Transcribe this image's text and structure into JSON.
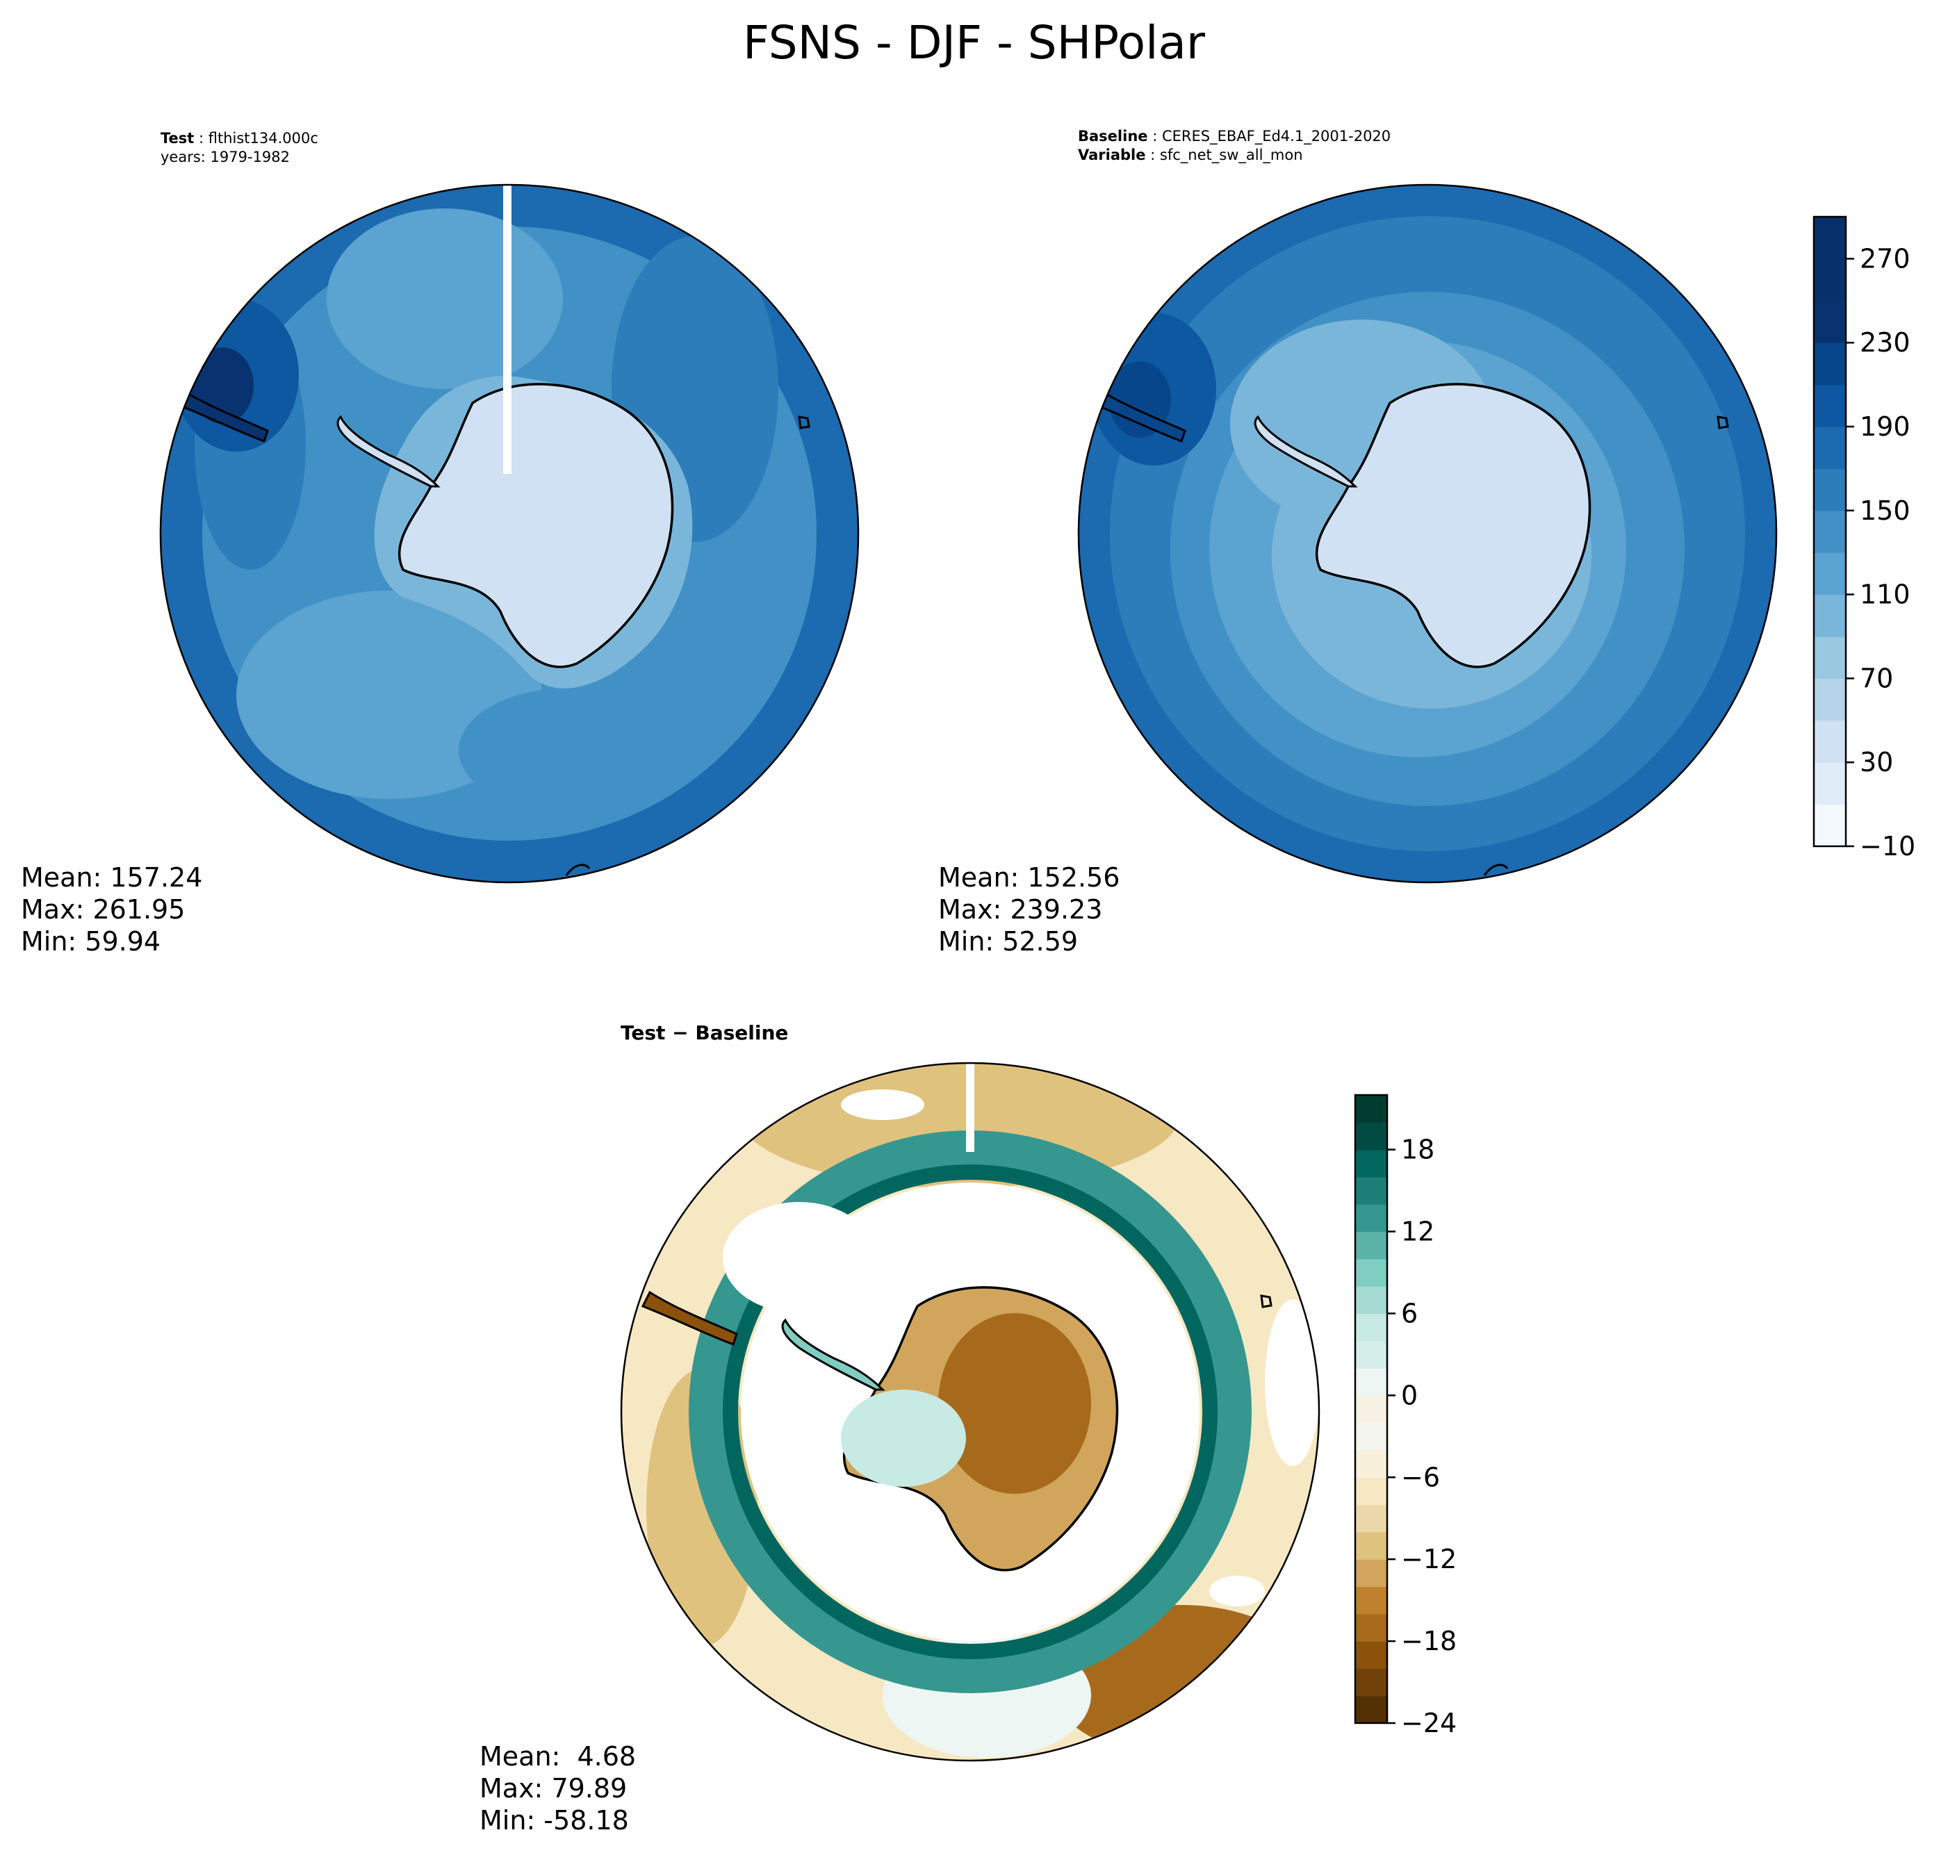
{
  "figure": {
    "title": "FSNS - DJF - SHPolar"
  },
  "colors": {
    "blues": [
      "#f4f9fe",
      "#e0edf8",
      "#cfe1f2",
      "#b6d4e9",
      "#9ac8e0",
      "#7ab6d9",
      "#5ba3d0",
      "#4191c6",
      "#2d7dbb",
      "#1c6aaf",
      "#0d58a1",
      "#08468b",
      "#083370"
    ],
    "brbg_neg": [
      "#543005",
      "#704109",
      "#8c510a",
      "#a76a1c",
      "#bf812d",
      "#d1a55b",
      "#dfc27d",
      "#ebd7a9",
      "#f6e8c3",
      "#f9f0dc"
    ],
    "brbg_pos": [
      "#eef6f3",
      "#d6eee9",
      "#c7eae5",
      "#a5dbd2",
      "#80cdc1",
      "#5bb3a8",
      "#35978f",
      "#1d7f77",
      "#01665e",
      "#014b43",
      "#003c30"
    ],
    "coastline": "#000000"
  },
  "chart_data": [
    {
      "type": "contourf",
      "projection": "south-polar-stereo",
      "panel": "test",
      "subtitle_label": "Test",
      "subtitle_value": "flthist134.000c",
      "subtitle_line2": "years: 1979-1982",
      "stats": {
        "mean": "Mean: 157.24",
        "max": "Max: 261.95",
        "min": "Min: 59.94"
      },
      "colorbar": {
        "shared_with": "baseline"
      }
    },
    {
      "type": "contourf",
      "projection": "south-polar-stereo",
      "panel": "baseline",
      "subtitle_label": "Baseline",
      "subtitle_value": "CERES_EBAF_Ed4.1_2001-2020",
      "subtitle_label2": "Variable",
      "subtitle_value2": "sfc_net_sw_all_mon",
      "stats": {
        "mean": "Mean: 152.56",
        "max": "Max: 239.23",
        "min": "Min: 52.59"
      },
      "colorbar": {
        "levels": [
          -10,
          10,
          30,
          50,
          70,
          90,
          110,
          130,
          150,
          170,
          190,
          210,
          230,
          250,
          270,
          290
        ],
        "ticks": [
          -10,
          30,
          70,
          110,
          150,
          190,
          230,
          270
        ],
        "tick_labels": [
          "−10",
          "30",
          "70",
          "110",
          "150",
          "190",
          "230",
          "270"
        ],
        "range": [
          -10,
          290
        ],
        "cmap": "Blues"
      }
    },
    {
      "type": "contourf",
      "projection": "south-polar-stereo",
      "panel": "difference",
      "title": "Test − Baseline",
      "stats": {
        "mean": "Mean:  4.68",
        "max": "Max: 79.89",
        "min": "Min: -58.18"
      },
      "colorbar": {
        "levels": [
          -24,
          -22,
          -20,
          -18,
          -16,
          -14,
          -12,
          -10,
          -8,
          -6,
          -4,
          -2,
          0,
          2,
          4,
          6,
          8,
          10,
          12,
          14,
          16,
          18,
          20,
          22
        ],
        "ticks": [
          -24,
          -18,
          -12,
          -6,
          0,
          6,
          12,
          18
        ],
        "tick_labels": [
          "−24",
          "−18",
          "−12",
          "−6",
          "0",
          "6",
          "12",
          "18"
        ],
        "range": [
          -24,
          22
        ],
        "cmap": "BrBG"
      }
    }
  ]
}
